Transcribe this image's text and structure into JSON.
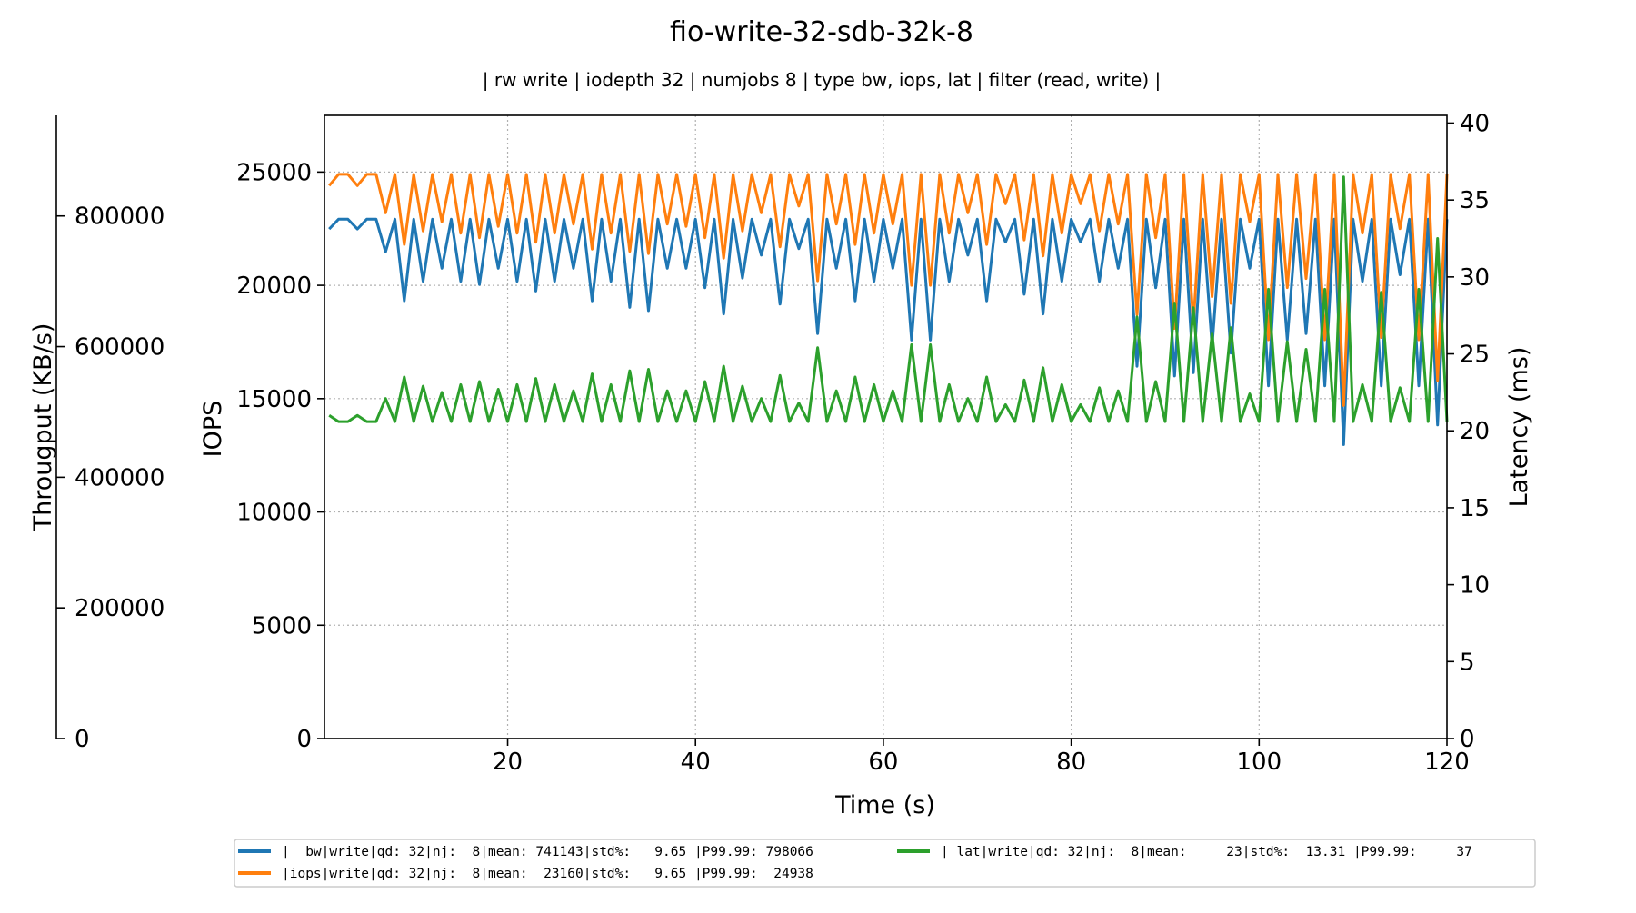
{
  "chart_data": {
    "type": "line",
    "title": "fio-write-32-sdb-32k-8",
    "subtitle": "| rw write | iodepth 32 | numjobs 8 | type bw, iops, lat | filter (read, write) |",
    "xlabel": "Time (s)",
    "ylabel_iops": "IOPS",
    "ylabel_bw": "Througput (KB/s)",
    "ylabel_lat": "Latency (ms)",
    "xlim": [
      0.5,
      120
    ],
    "ylim_iops": [
      0,
      27500
    ],
    "ylim_bw": [
      0,
      954000
    ],
    "ylim_lat": [
      0,
      40.5
    ],
    "xticks": [
      20,
      40,
      60,
      80,
      100,
      120
    ],
    "yticks_iops": [
      0,
      5000,
      10000,
      15000,
      20000,
      25000
    ],
    "yticks_bw": [
      0,
      200000,
      400000,
      600000,
      800000
    ],
    "yticks_lat": [
      0,
      5,
      10,
      15,
      20,
      25,
      30,
      35,
      40
    ],
    "grid": true,
    "colors": {
      "bw": "#1f77b4",
      "iops": "#ff7f0e",
      "lat": "#2ca02c"
    },
    "series": [
      {
        "key": "bw",
        "axis": "bw",
        "color": "#1f77b4",
        "x": [
          1,
          2,
          3,
          4,
          5,
          6,
          7,
          8,
          9,
          10,
          11,
          12,
          13,
          14,
          15,
          16,
          17,
          18,
          19,
          20,
          21,
          22,
          23,
          24,
          25,
          26,
          27,
          28,
          29,
          30,
          31,
          32,
          33,
          34,
          35,
          36,
          37,
          38,
          39,
          40,
          41,
          42,
          43,
          44,
          45,
          46,
          47,
          48,
          49,
          50,
          51,
          52,
          53,
          54,
          55,
          56,
          57,
          58,
          59,
          60,
          61,
          62,
          63,
          64,
          65,
          66,
          67,
          68,
          69,
          70,
          71,
          72,
          73,
          74,
          75,
          76,
          77,
          78,
          79,
          80,
          81,
          82,
          83,
          84,
          85,
          86,
          87,
          88,
          89,
          90,
          91,
          92,
          93,
          94,
          95,
          96,
          97,
          98,
          99,
          100,
          101,
          102,
          103,
          104,
          105,
          106,
          107,
          108,
          109,
          110,
          111,
          112,
          113,
          114,
          115,
          116,
          117,
          118,
          119,
          120
        ],
        "values": [
          780000,
          795000,
          795000,
          780000,
          795000,
          795000,
          745000,
          795000,
          670000,
          795000,
          700000,
          795000,
          720000,
          795000,
          700000,
          795000,
          695000,
          795000,
          720000,
          795000,
          700000,
          795000,
          685000,
          795000,
          700000,
          795000,
          720000,
          795000,
          670000,
          795000,
          700000,
          795000,
          660000,
          795000,
          655000,
          795000,
          720000,
          795000,
          720000,
          795000,
          690000,
          795000,
          650000,
          795000,
          705000,
          795000,
          740000,
          795000,
          665000,
          795000,
          750000,
          795000,
          620000,
          795000,
          720000,
          795000,
          670000,
          795000,
          700000,
          795000,
          720000,
          795000,
          610000,
          795000,
          610000,
          795000,
          700000,
          795000,
          740000,
          795000,
          670000,
          795000,
          760000,
          795000,
          680000,
          795000,
          650000,
          795000,
          700000,
          795000,
          760000,
          795000,
          700000,
          795000,
          720000,
          795000,
          570000,
          795000,
          690000,
          795000,
          555000,
          795000,
          560000,
          795000,
          600000,
          795000,
          590000,
          795000,
          720000,
          795000,
          540000,
          795000,
          610000,
          795000,
          620000,
          795000,
          540000,
          795000,
          450000,
          795000,
          700000,
          795000,
          540000,
          795000,
          710000,
          795000,
          540000,
          795000,
          480000,
          795000
        ]
      },
      {
        "key": "iops",
        "axis": "iops",
        "color": "#ff7f0e",
        "x": [
          1,
          2,
          3,
          4,
          5,
          6,
          7,
          8,
          9,
          10,
          11,
          12,
          13,
          14,
          15,
          16,
          17,
          18,
          19,
          20,
          21,
          22,
          23,
          24,
          25,
          26,
          27,
          28,
          29,
          30,
          31,
          32,
          33,
          34,
          35,
          36,
          37,
          38,
          39,
          40,
          41,
          42,
          43,
          44,
          45,
          46,
          47,
          48,
          49,
          50,
          51,
          52,
          53,
          54,
          55,
          56,
          57,
          58,
          59,
          60,
          61,
          62,
          63,
          64,
          65,
          66,
          67,
          68,
          69,
          70,
          71,
          72,
          73,
          74,
          75,
          76,
          77,
          78,
          79,
          80,
          81,
          82,
          83,
          84,
          85,
          86,
          87,
          88,
          89,
          90,
          91,
          92,
          93,
          94,
          95,
          96,
          97,
          98,
          99,
          100,
          101,
          102,
          103,
          104,
          105,
          106,
          107,
          108,
          109,
          110,
          111,
          112,
          113,
          114,
          115,
          116,
          117,
          118,
          119,
          120
        ],
        "values": [
          24400,
          24900,
          24900,
          24400,
          24900,
          24900,
          23200,
          24900,
          21800,
          24900,
          22400,
          24900,
          22800,
          24900,
          22300,
          24900,
          22100,
          24900,
          22600,
          24900,
          22300,
          24900,
          21900,
          24900,
          22300,
          24900,
          22700,
          24900,
          21600,
          24900,
          22300,
          24900,
          21500,
          24900,
          21400,
          24900,
          22700,
          24900,
          22600,
          24900,
          22100,
          24900,
          21200,
          24900,
          22400,
          24900,
          23200,
          24900,
          21700,
          24900,
          23500,
          24900,
          20200,
          24900,
          22700,
          24900,
          21800,
          24900,
          22300,
          24900,
          22700,
          24900,
          20000,
          24900,
          20000,
          24900,
          22300,
          24900,
          23200,
          24900,
          21800,
          24900,
          23600,
          24900,
          22000,
          24900,
          21300,
          24900,
          22300,
          24900,
          23600,
          24900,
          22400,
          24900,
          22700,
          24900,
          18700,
          24900,
          22100,
          24900,
          18100,
          24900,
          18300,
          24900,
          19500,
          24900,
          19200,
          24900,
          22800,
          24900,
          17600,
          24900,
          19900,
          24900,
          20300,
          24900,
          17600,
          24900,
          14700,
          24900,
          22300,
          24900,
          17700,
          24900,
          22500,
          24900,
          17600,
          24900,
          15800,
          24900
        ]
      },
      {
        "key": "lat",
        "axis": "lat",
        "color": "#2ca02c",
        "x": [
          1,
          2,
          3,
          4,
          5,
          6,
          7,
          8,
          9,
          10,
          11,
          12,
          13,
          14,
          15,
          16,
          17,
          18,
          19,
          20,
          21,
          22,
          23,
          24,
          25,
          26,
          27,
          28,
          29,
          30,
          31,
          32,
          33,
          34,
          35,
          36,
          37,
          38,
          39,
          40,
          41,
          42,
          43,
          44,
          45,
          46,
          47,
          48,
          49,
          50,
          51,
          52,
          53,
          54,
          55,
          56,
          57,
          58,
          59,
          60,
          61,
          62,
          63,
          64,
          65,
          66,
          67,
          68,
          69,
          70,
          71,
          72,
          73,
          74,
          75,
          76,
          77,
          78,
          79,
          80,
          81,
          82,
          83,
          84,
          85,
          86,
          87,
          88,
          89,
          90,
          91,
          92,
          93,
          94,
          95,
          96,
          97,
          98,
          99,
          100,
          101,
          102,
          103,
          104,
          105,
          106,
          107,
          108,
          109,
          110,
          111,
          112,
          113,
          114,
          115,
          116,
          117,
          118,
          119,
          120
        ],
        "values": [
          21.0,
          20.6,
          20.6,
          21.0,
          20.6,
          20.6,
          22.1,
          20.6,
          23.5,
          20.6,
          22.9,
          20.6,
          22.5,
          20.6,
          23.0,
          20.6,
          23.2,
          20.6,
          22.7,
          20.6,
          23.0,
          20.6,
          23.4,
          20.6,
          23.0,
          20.6,
          22.6,
          20.6,
          23.7,
          20.6,
          23.0,
          20.6,
          23.9,
          20.6,
          24.0,
          20.6,
          22.6,
          20.6,
          22.6,
          20.6,
          23.2,
          20.6,
          24.2,
          20.6,
          22.9,
          20.6,
          22.1,
          20.6,
          23.6,
          20.6,
          21.8,
          20.6,
          25.4,
          20.6,
          22.6,
          20.6,
          23.5,
          20.6,
          23.0,
          20.6,
          22.6,
          20.6,
          25.6,
          20.6,
          25.6,
          20.6,
          23.0,
          20.6,
          22.1,
          20.6,
          23.5,
          20.6,
          21.7,
          20.6,
          23.3,
          20.6,
          24.1,
          20.6,
          23.0,
          20.6,
          21.7,
          20.6,
          22.8,
          20.6,
          22.6,
          20.6,
          27.4,
          20.6,
          23.2,
          20.6,
          28.3,
          20.6,
          28.0,
          20.6,
          26.3,
          20.6,
          26.7,
          20.6,
          22.4,
          20.6,
          29.2,
          20.6,
          25.8,
          20.6,
          25.3,
          20.6,
          29.2,
          20.6,
          36.5,
          20.6,
          23.0,
          20.6,
          29.0,
          20.6,
          22.8,
          20.6,
          29.2,
          20.6,
          32.5,
          20.6
        ]
      }
    ],
    "legend": [
      {
        "color": "#1f77b4",
        "label": "|  bw|write|qd: 32|nj:  8|mean: 741143|std%:   9.65 |P99.99: 798066"
      },
      {
        "color": "#ff7f0e",
        "label": "|iops|write|qd: 32|nj:  8|mean:  23160|std%:   9.65 |P99.99:  24938"
      },
      {
        "color": "#2ca02c",
        "label": "| lat|write|qd: 32|nj:  8|mean:     23|std%:  13.31 |P99.99:     37"
      }
    ],
    "legend_position": "bottom-center"
  }
}
